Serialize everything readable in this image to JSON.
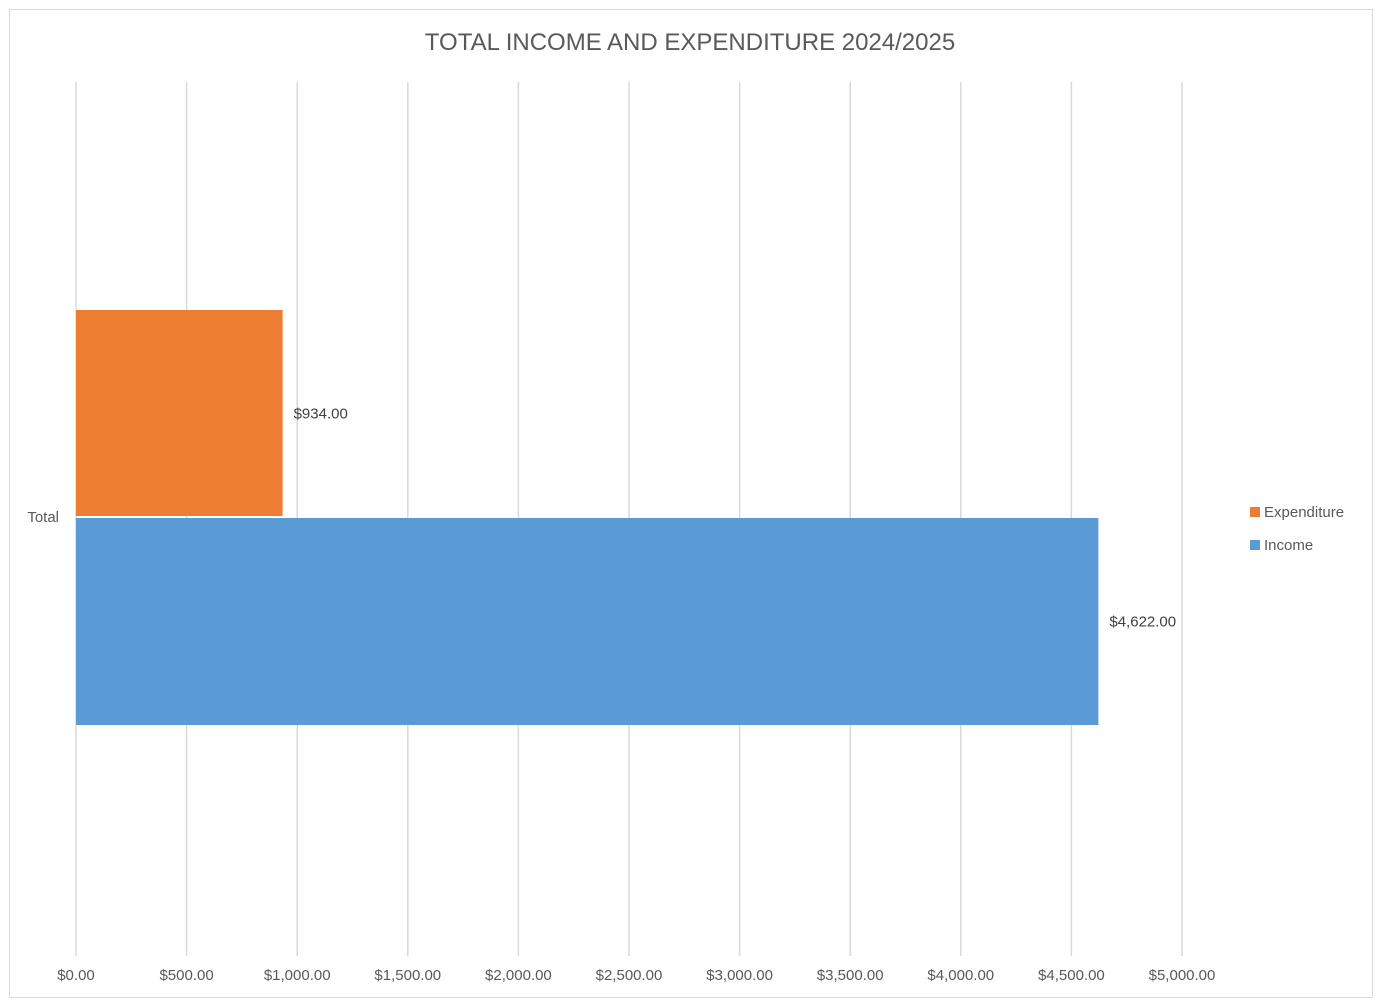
{
  "chart_data": {
    "type": "bar",
    "orientation": "horizontal",
    "title": "TOTAL INCOME AND EXPENDITURE 2024/2025",
    "categories": [
      "Total"
    ],
    "series": [
      {
        "name": "Expenditure",
        "values": [
          934
        ],
        "color": "#ED7D31",
        "data_labels": [
          "$934.00"
        ]
      },
      {
        "name": "Income",
        "values": [
          4622
        ],
        "color": "#5B9BD5",
        "data_labels": [
          "$4,622.00"
        ]
      }
    ],
    "xlim": [
      0,
      5000
    ],
    "x_ticks": [
      0,
      500,
      1000,
      1500,
      2000,
      2500,
      3000,
      3500,
      4000,
      4500,
      5000
    ],
    "x_tick_labels": [
      "$0.00",
      "$500.00",
      "$1,000.00",
      "$1,500.00",
      "$2,000.00",
      "$2,500.00",
      "$3,000.00",
      "$3,500.00",
      "$4,000.00",
      "$4,500.00",
      "$5,000.00"
    ],
    "grid": true,
    "legend_position": "right"
  }
}
